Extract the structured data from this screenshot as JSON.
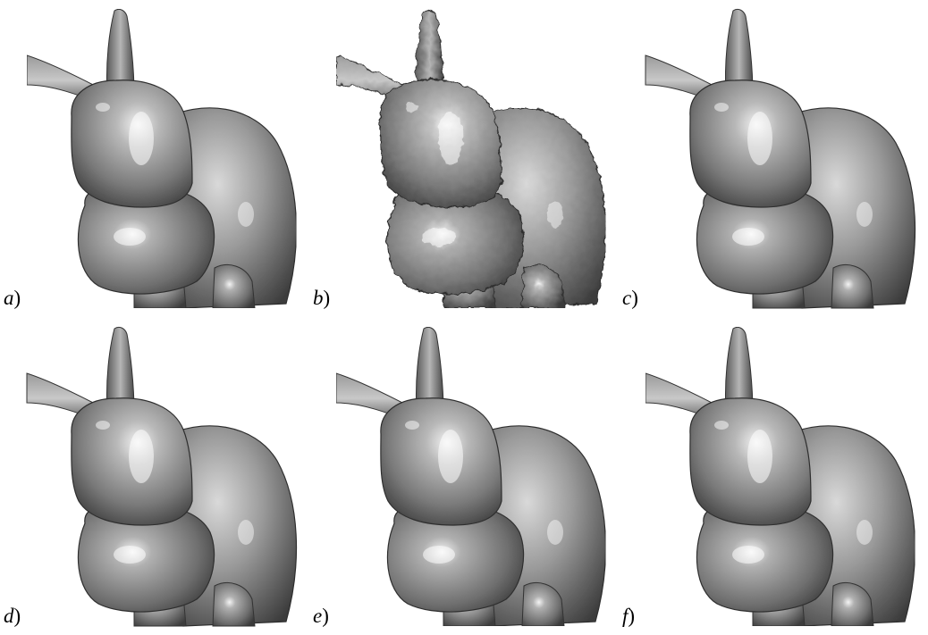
{
  "figure": {
    "panels": [
      {
        "label": "a",
        "variant": "original"
      },
      {
        "label": "b",
        "variant": "noisy"
      },
      {
        "label": "c",
        "variant": "smooth"
      },
      {
        "label": "d",
        "variant": "smooth"
      },
      {
        "label": "e",
        "variant": "detailed"
      },
      {
        "label": "f",
        "variant": "detailed"
      }
    ],
    "paren": ")",
    "colors": {
      "mesh_light": "#e8e8e8",
      "mesh_mid": "#9a9a9a",
      "mesh_dark": "#3c3c3c",
      "background": "#ffffff"
    }
  }
}
